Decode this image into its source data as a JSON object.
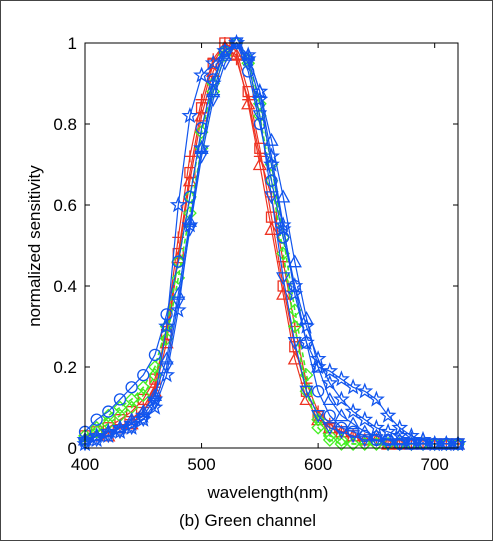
{
  "caption": "(b) Green channel",
  "chart_data": {
    "type": "line",
    "title": "",
    "xlabel": "wavelength(nm)",
    "ylabel": "normalized sensitivity",
    "xlim": [
      400,
      720
    ],
    "ylim": [
      0,
      1
    ],
    "xticks": [
      400,
      500,
      600,
      700
    ],
    "yticks": [
      0,
      0.2,
      0.4,
      0.6,
      0.8,
      1
    ],
    "ytick_labels": [
      "0",
      "0.2",
      "0.4",
      "0.6",
      "0.8",
      "1"
    ],
    "grid": false,
    "legend": "none",
    "x": [
      400,
      410,
      420,
      430,
      440,
      450,
      460,
      470,
      480,
      490,
      500,
      510,
      520,
      530,
      540,
      550,
      560,
      570,
      580,
      590,
      600,
      610,
      620,
      630,
      640,
      650,
      660,
      670,
      680,
      690,
      700,
      710,
      720
    ],
    "series_colors": {
      "red": "#ee3322",
      "green": "#44ee22",
      "blue": "#1155ee"
    },
    "series": [
      {
        "color": "red",
        "marker": "square",
        "values": [
          0.03,
          0.04,
          0.05,
          0.07,
          0.09,
          0.12,
          0.17,
          0.28,
          0.48,
          0.68,
          0.84,
          0.95,
          1.0,
          0.98,
          0.88,
          0.74,
          0.57,
          0.4,
          0.25,
          0.14,
          0.08,
          0.05,
          0.04,
          0.03,
          0.02,
          0.02,
          0.01,
          0.01,
          0.01,
          0.01,
          0.01,
          0.01,
          0.01
        ]
      },
      {
        "color": "red",
        "marker": "plus",
        "values": [
          0.02,
          0.03,
          0.04,
          0.05,
          0.07,
          0.1,
          0.15,
          0.3,
          0.52,
          0.72,
          0.86,
          0.96,
          1.0,
          0.96,
          0.86,
          0.72,
          0.62,
          0.46,
          0.3,
          0.16,
          0.09,
          0.06,
          0.04,
          0.03,
          0.02,
          0.02,
          0.01,
          0.01,
          0.01,
          0.01,
          0.01,
          0.01,
          0.01
        ]
      },
      {
        "color": "red",
        "marker": "triangle",
        "values": [
          0.02,
          0.03,
          0.03,
          0.05,
          0.06,
          0.09,
          0.14,
          0.26,
          0.47,
          0.66,
          0.82,
          0.93,
          0.99,
          0.97,
          0.85,
          0.7,
          0.54,
          0.38,
          0.22,
          0.12,
          0.07,
          0.05,
          0.04,
          0.03,
          0.02,
          0.02,
          0.01,
          0.01,
          0.01,
          0.01,
          0.01,
          0.01,
          0.01
        ]
      },
      {
        "color": "green",
        "marker": "diamond",
        "values": [
          0.03,
          0.05,
          0.08,
          0.1,
          0.12,
          0.15,
          0.2,
          0.3,
          0.46,
          0.62,
          0.78,
          0.9,
          0.98,
          1.0,
          0.95,
          0.82,
          0.66,
          0.48,
          0.3,
          0.14,
          0.05,
          0.02,
          0.01,
          0.01,
          0.01,
          0.01,
          0.01,
          0.01,
          0.01,
          0.01,
          0.01,
          0.01,
          0.01
        ]
      },
      {
        "color": "green",
        "marker": "diamond",
        "values": [
          0.02,
          0.04,
          0.06,
          0.08,
          0.1,
          0.13,
          0.18,
          0.27,
          0.42,
          0.58,
          0.74,
          0.88,
          0.97,
          1.0,
          0.96,
          0.85,
          0.7,
          0.52,
          0.34,
          0.18,
          0.07,
          0.03,
          0.02,
          0.01,
          0.01,
          0.01,
          0.01,
          0.01,
          0.01,
          0.01,
          0.01,
          0.01,
          0.01
        ]
      },
      {
        "color": "blue",
        "marker": "circle",
        "values": [
          0.04,
          0.07,
          0.09,
          0.12,
          0.15,
          0.18,
          0.23,
          0.33,
          0.46,
          0.62,
          0.79,
          0.91,
          0.98,
          1.0,
          0.93,
          0.8,
          0.66,
          0.52,
          0.4,
          0.26,
          0.14,
          0.08,
          0.05,
          0.04,
          0.03,
          0.02,
          0.02,
          0.01,
          0.01,
          0.01,
          0.01,
          0.01,
          0.01
        ]
      },
      {
        "color": "blue",
        "marker": "star",
        "values": [
          0.02,
          0.03,
          0.04,
          0.05,
          0.06,
          0.08,
          0.12,
          0.3,
          0.6,
          0.82,
          0.92,
          0.95,
          0.98,
          1.0,
          0.97,
          0.88,
          0.72,
          0.55,
          0.38,
          0.26,
          0.2,
          0.19,
          0.17,
          0.15,
          0.14,
          0.12,
          0.08,
          0.05,
          0.03,
          0.02,
          0.01,
          0.01,
          0.01
        ]
      },
      {
        "color": "blue",
        "marker": "triangle",
        "values": [
          0.02,
          0.03,
          0.04,
          0.05,
          0.07,
          0.09,
          0.13,
          0.22,
          0.38,
          0.56,
          0.74,
          0.88,
          0.97,
          1.0,
          0.97,
          0.88,
          0.76,
          0.62,
          0.46,
          0.32,
          0.2,
          0.12,
          0.08,
          0.06,
          0.04,
          0.03,
          0.02,
          0.02,
          0.01,
          0.01,
          0.01,
          0.01,
          0.01
        ]
      },
      {
        "color": "blue",
        "marker": "triangle-down",
        "values": [
          0.01,
          0.02,
          0.03,
          0.04,
          0.05,
          0.07,
          0.11,
          0.2,
          0.36,
          0.54,
          0.72,
          0.86,
          0.95,
          1.0,
          0.95,
          0.82,
          0.62,
          0.42,
          0.26,
          0.14,
          0.08,
          0.05,
          0.04,
          0.03,
          0.02,
          0.02,
          0.01,
          0.01,
          0.01,
          0.01,
          0.01,
          0.01,
          0.01
        ]
      },
      {
        "color": "blue",
        "marker": "star",
        "values": [
          0.01,
          0.02,
          0.03,
          0.04,
          0.05,
          0.07,
          0.1,
          0.18,
          0.34,
          0.55,
          0.74,
          0.9,
          0.98,
          1.0,
          0.96,
          0.86,
          0.7,
          0.54,
          0.4,
          0.3,
          0.22,
          0.16,
          0.12,
          0.09,
          0.07,
          0.05,
          0.04,
          0.03,
          0.02,
          0.02,
          0.01,
          0.01,
          0.01
        ]
      }
    ]
  }
}
